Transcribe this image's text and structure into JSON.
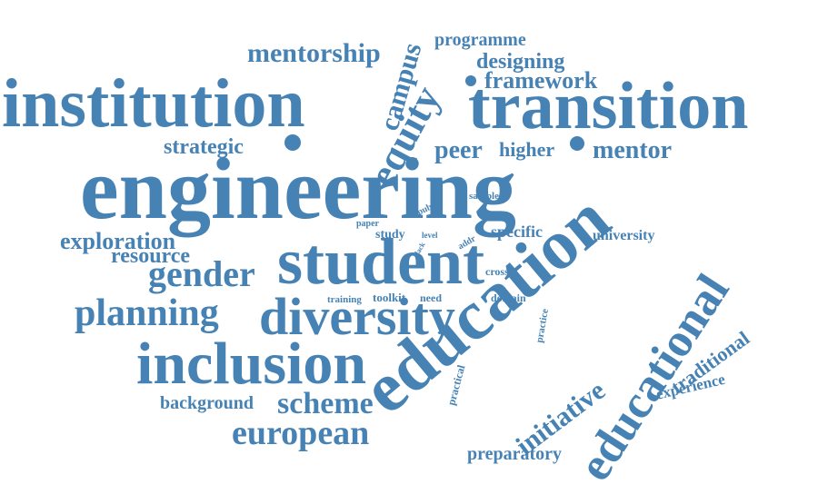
{
  "color": "#4682b4",
  "words": [
    "engineering",
    "student",
    "education",
    "institution",
    "transition",
    "diversity",
    "inclusion",
    "educational",
    "equity",
    "gender",
    "planning",
    "exploration",
    "resource",
    "scheme",
    "european",
    "initiative",
    "campus",
    "mentorship",
    "mentor",
    "framework",
    "designing",
    "programme",
    "strategic",
    "peer",
    "higher",
    "background",
    "preparatory",
    "traditional",
    "experience",
    "specific",
    "university",
    "toolkit",
    "need",
    "training",
    "domain",
    "cross",
    "practice",
    "practical",
    "study",
    "level",
    "addr",
    "paper",
    "lack",
    "public",
    "sample"
  ]
}
